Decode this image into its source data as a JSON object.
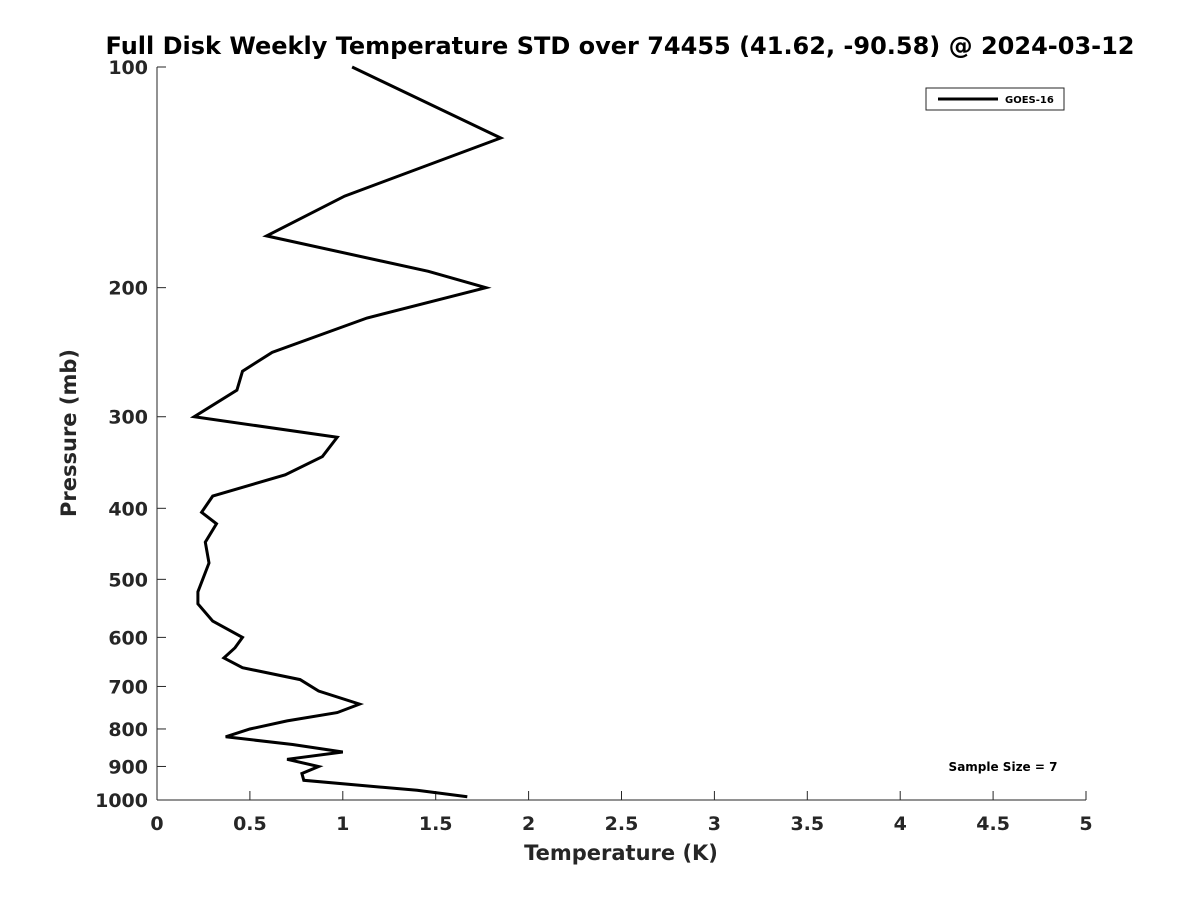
{
  "chart_data": {
    "type": "line",
    "title": "Full Disk Weekly Temperature STD over 74455 (41.62, -90.58) @ 2024-03-12",
    "xlabel": "Temperature (K)",
    "ylabel": "Pressure (mb)",
    "xlim": [
      0,
      5
    ],
    "ylim": [
      100,
      1000
    ],
    "y_scale": "log",
    "y_reversed": true,
    "grid": false,
    "legend_position": "top-right",
    "line_color": "#000000",
    "x_ticks": [
      "0",
      "0.5",
      "1",
      "1.5",
      "2",
      "2.5",
      "3",
      "3.5",
      "4",
      "4.5",
      "5"
    ],
    "y_ticks": [
      "100",
      "200",
      "300",
      "400",
      "500",
      "600",
      "700",
      "800",
      "900",
      "1000"
    ],
    "annotation": "Sample Size = 7",
    "series": [
      {
        "name": "GOES-16",
        "points": [
          [
            1.05,
            100
          ],
          [
            1.85,
            125
          ],
          [
            1.01,
            150
          ],
          [
            0.59,
            170
          ],
          [
            1.46,
            190
          ],
          [
            1.77,
            200
          ],
          [
            1.13,
            220
          ],
          [
            0.62,
            245
          ],
          [
            0.46,
            260
          ],
          [
            0.43,
            276
          ],
          [
            0.2,
            300
          ],
          [
            0.97,
            320
          ],
          [
            0.89,
            340
          ],
          [
            0.69,
            360
          ],
          [
            0.3,
            385
          ],
          [
            0.24,
            405
          ],
          [
            0.32,
            420
          ],
          [
            0.26,
            445
          ],
          [
            0.28,
            475
          ],
          [
            0.22,
            520
          ],
          [
            0.22,
            540
          ],
          [
            0.3,
            570
          ],
          [
            0.46,
            600
          ],
          [
            0.42,
            620
          ],
          [
            0.36,
            640
          ],
          [
            0.46,
            660
          ],
          [
            0.77,
            685
          ],
          [
            0.87,
            710
          ],
          [
            1.09,
            740
          ],
          [
            0.97,
            760
          ],
          [
            0.7,
            780
          ],
          [
            0.5,
            800
          ],
          [
            0.37,
            820
          ],
          [
            0.73,
            840
          ],
          [
            1.0,
            860
          ],
          [
            0.7,
            880
          ],
          [
            0.87,
            900
          ],
          [
            0.78,
            920
          ],
          [
            0.79,
            940
          ],
          [
            1.4,
            970
          ],
          [
            1.67,
            990
          ]
        ]
      }
    ]
  }
}
